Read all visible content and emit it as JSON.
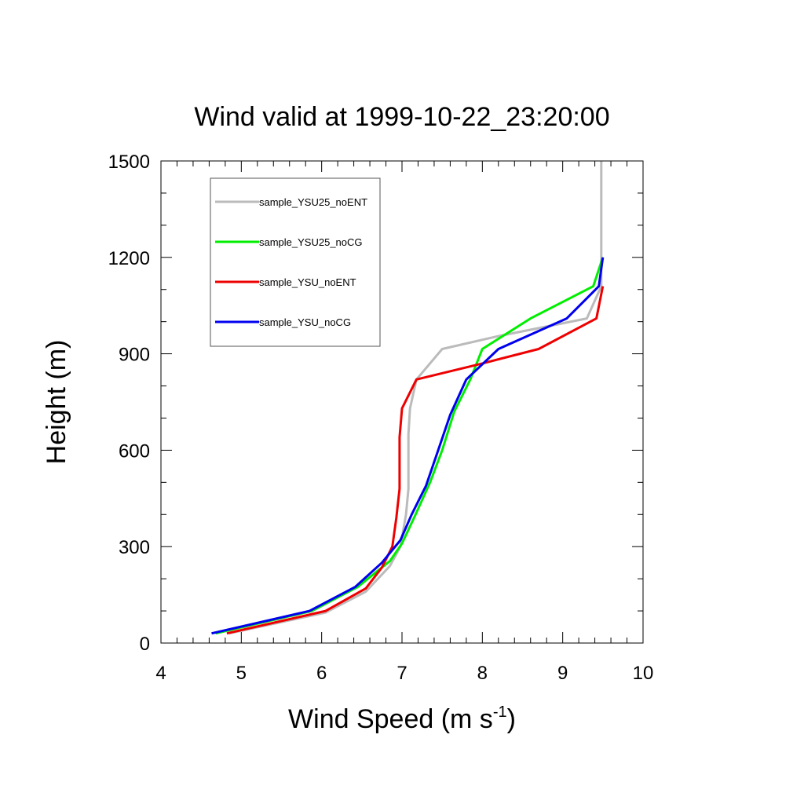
{
  "chart_data": {
    "type": "line",
    "title": "Wind valid at 1999-10-22_23:20:00",
    "xlabel": "Wind Speed (m s",
    "xlabel_sup": "-1",
    "xlabel_end": ")",
    "ylabel": "Height (m)",
    "xlim": [
      4,
      10
    ],
    "ylim": [
      0,
      1500
    ],
    "xticks": [
      "4",
      "5",
      "6",
      "7",
      "8",
      "9",
      "10"
    ],
    "yticks": [
      "0",
      "300",
      "600",
      "900",
      "1200",
      "1500"
    ],
    "legend_position": "top-left",
    "series": [
      {
        "name": "sample_YSU25_noENT",
        "color": "#bbbbbb",
        "points": [
          [
            4.85,
            30
          ],
          [
            6.05,
            95
          ],
          [
            6.55,
            160
          ],
          [
            6.85,
            240
          ],
          [
            6.98,
            300
          ],
          [
            7.05,
            400
          ],
          [
            7.08,
            480
          ],
          [
            7.08,
            650
          ],
          [
            7.1,
            730
          ],
          [
            7.18,
            820
          ],
          [
            7.5,
            915
          ],
          [
            8.2,
            955
          ],
          [
            9.3,
            1010
          ],
          [
            9.48,
            1110
          ],
          [
            9.48,
            1200
          ],
          [
            9.48,
            1500
          ]
        ]
      },
      {
        "name": "sample_YSU25_noCG",
        "color": "#00ee00",
        "points": [
          [
            4.68,
            30
          ],
          [
            5.88,
            100
          ],
          [
            6.45,
            175
          ],
          [
            6.85,
            255
          ],
          [
            7.0,
            310
          ],
          [
            7.15,
            390
          ],
          [
            7.35,
            500
          ],
          [
            7.5,
            600
          ],
          [
            7.65,
            720
          ],
          [
            7.85,
            820
          ],
          [
            8.0,
            915
          ],
          [
            8.6,
            1010
          ],
          [
            9.38,
            1110
          ],
          [
            9.5,
            1200
          ]
        ]
      },
      {
        "name": "sample_YSU_noENT",
        "color": "#ee0000",
        "points": [
          [
            4.82,
            30
          ],
          [
            6.05,
            100
          ],
          [
            6.55,
            170
          ],
          [
            6.75,
            235
          ],
          [
            6.88,
            300
          ],
          [
            6.93,
            390
          ],
          [
            6.97,
            480
          ],
          [
            6.97,
            640
          ],
          [
            7.0,
            730
          ],
          [
            7.18,
            820
          ],
          [
            8.0,
            870
          ],
          [
            8.7,
            915
          ],
          [
            9.42,
            1010
          ],
          [
            9.5,
            1110
          ]
        ]
      },
      {
        "name": "sample_YSU_noCG",
        "color": "#0000ee",
        "points": [
          [
            4.63,
            30
          ],
          [
            5.85,
            100
          ],
          [
            6.42,
            175
          ],
          [
            6.75,
            250
          ],
          [
            6.98,
            320
          ],
          [
            7.12,
            400
          ],
          [
            7.3,
            490
          ],
          [
            7.45,
            600
          ],
          [
            7.6,
            710
          ],
          [
            7.8,
            820
          ],
          [
            8.2,
            915
          ],
          [
            9.05,
            1010
          ],
          [
            9.45,
            1110
          ],
          [
            9.5,
            1200
          ]
        ]
      }
    ]
  }
}
